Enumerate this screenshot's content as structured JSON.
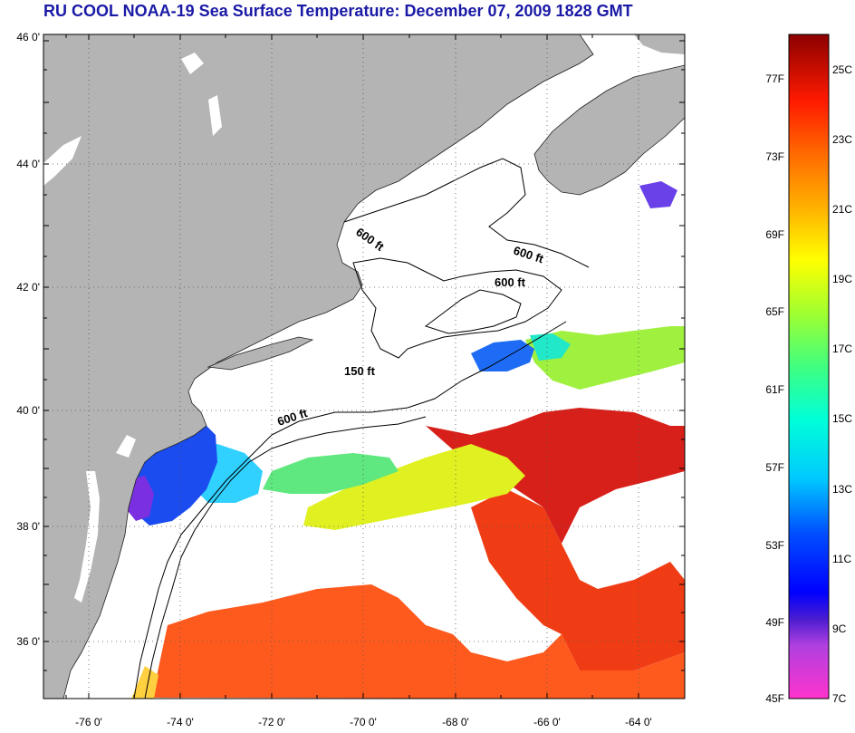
{
  "title": "RU COOL  NOAA-19  Sea Surface Temperature:  December 07, 2009 1828 GMT",
  "map": {
    "lon_range": [
      -77,
      -63
    ],
    "lat_range": [
      35,
      46
    ],
    "lon_tick_labels": [
      "-76 0'",
      "-74 0'",
      "-72 0'",
      "-70 0'",
      "-68 0'",
      "-66 0'",
      "-64 0'"
    ],
    "lat_tick_labels": [
      "46 0'",
      "44 0'",
      "42 0'",
      "40 0'",
      "38 0'",
      "36 0'"
    ],
    "land_color": "#b4b4b4",
    "no_data_color": "#ffffff",
    "grid": "dotted",
    "contour_labels": [
      {
        "text": "600 ft"
      },
      {
        "text": "600 ft"
      },
      {
        "text": "600 ft"
      },
      {
        "text": "150 ft"
      },
      {
        "text": "600 ft"
      }
    ]
  },
  "colorbar": {
    "range_f": [
      45,
      79
    ],
    "range_c": [
      7,
      26
    ],
    "fahrenheit_labels": [
      "77F",
      "73F",
      "69F",
      "65F",
      "61F",
      "57F",
      "53F",
      "49F",
      "45F"
    ],
    "celsius_labels": [
      "25C",
      "23C",
      "21C",
      "19C",
      "17C",
      "15C",
      "13C",
      "11C",
      "9C",
      "7C"
    ]
  }
}
